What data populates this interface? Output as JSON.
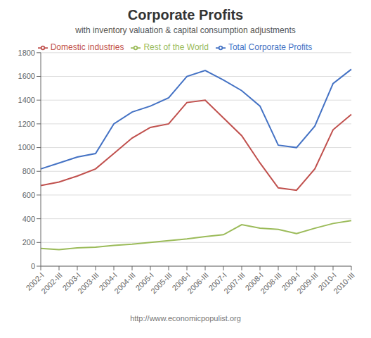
{
  "chart_data": {
    "type": "line",
    "title": "Corporate Profits",
    "subtitle": "with inventory valuation & capital consumption adjustments",
    "footer": "http://www.economicpopulist.org",
    "categories": [
      "2002-I",
      "2002-III",
      "2003-I",
      "2003-III",
      "2004-I",
      "2004-III",
      "2005-I",
      "2005-III",
      "2006-I",
      "2006-III",
      "2007-I",
      "2007-III",
      "2008-I",
      "2008-III",
      "2009-I",
      "2009-III",
      "2010-I",
      "2010-III"
    ],
    "series": [
      {
        "name": "Total Corporate Profits",
        "color": "#4472C4",
        "values": [
          820,
          870,
          920,
          950,
          1200,
          1300,
          1350,
          1420,
          1600,
          1650,
          1570,
          1480,
          1350,
          1020,
          1000,
          1180,
          1540,
          1660
        ]
      },
      {
        "name": "Domestic industries",
        "color": "#C0504D",
        "values": [
          680,
          710,
          760,
          820,
          950,
          1080,
          1170,
          1200,
          1380,
          1400,
          1250,
          1100,
          870,
          660,
          640,
          820,
          1150,
          1280
        ]
      },
      {
        "name": "Rest of the World",
        "color": "#9BBB59",
        "values": [
          150,
          140,
          155,
          160,
          175,
          185,
          200,
          215,
          230,
          250,
          265,
          350,
          320,
          310,
          275,
          320,
          360,
          385
        ]
      }
    ],
    "ylim": [
      0,
      1800
    ],
    "yticks": [
      0,
      200,
      400,
      600,
      800,
      1000,
      1200,
      1400,
      1600,
      1800
    ],
    "grid": "y",
    "legend": "top"
  }
}
